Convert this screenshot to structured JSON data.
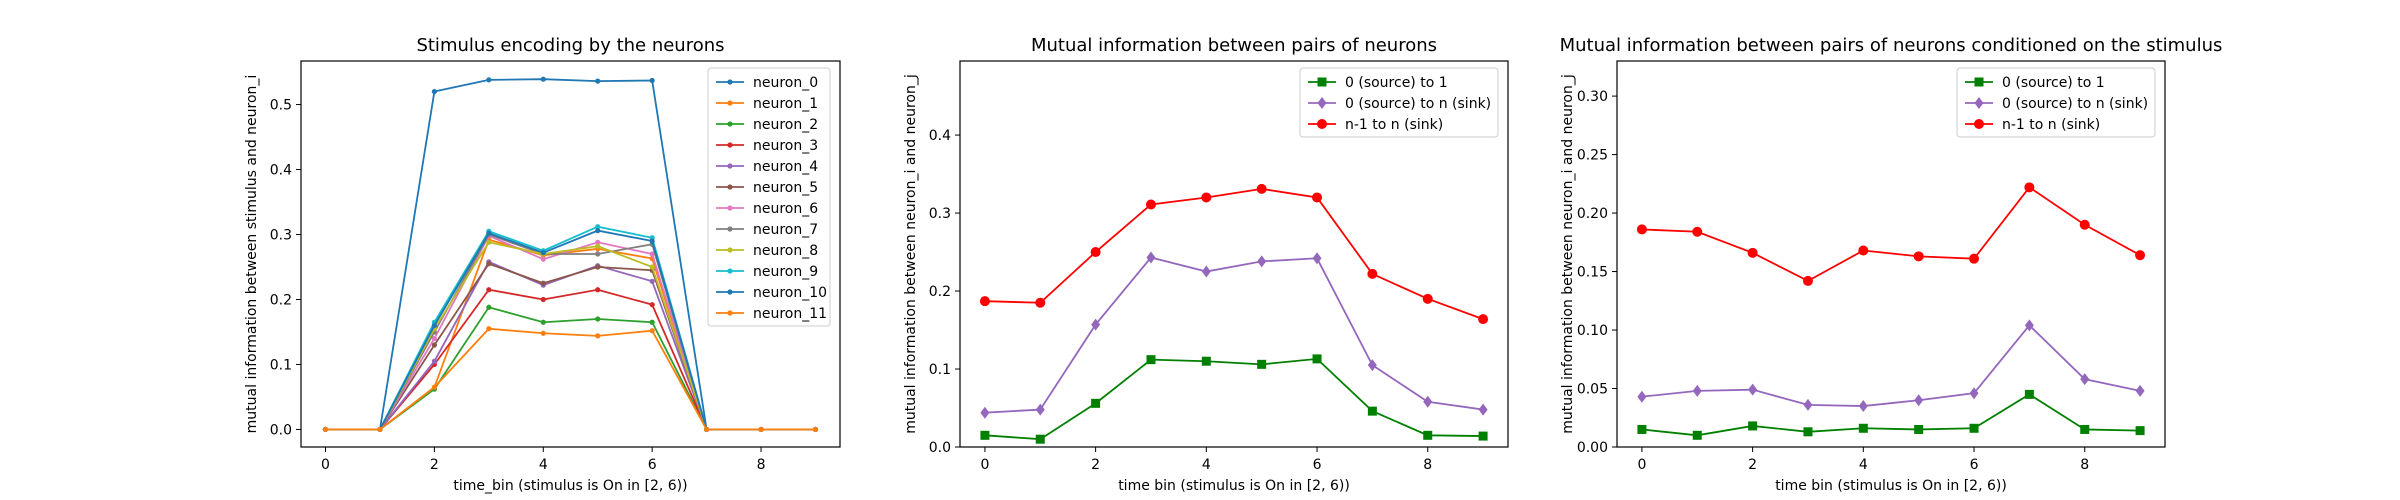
{
  "chart_data": [
    {
      "type": "line",
      "title": "Stimulus encoding by the neurons",
      "xlabel": "time_bin (stimulus is On in [2, 6))",
      "ylabel": "mutual information between stimulus and neuron_i",
      "xlim": [
        -0.45,
        9.45
      ],
      "ylim": [
        -0.027,
        0.567
      ],
      "xticks": [
        0,
        2,
        4,
        6,
        8
      ],
      "yticks": [
        0.0,
        0.1,
        0.2,
        0.3,
        0.4,
        0.5
      ],
      "ytick_labels": [
        "0.0",
        "0.1",
        "0.2",
        "0.3",
        "0.4",
        "0.5"
      ],
      "legend_loc": "upper right",
      "x": [
        0,
        1,
        2,
        3,
        4,
        5,
        6,
        7,
        8,
        9
      ],
      "series": [
        {
          "name": "neuron_0",
          "color": "#1f77b4",
          "marker": "dot",
          "values": [
            0,
            0,
            0.52,
            0.538,
            0.539,
            0.536,
            0.537,
            0,
            0,
            0
          ]
        },
        {
          "name": "neuron_1",
          "color": "#ff7f0e",
          "marker": "dot",
          "values": [
            0,
            0,
            0.065,
            0.292,
            0.268,
            0.278,
            0.263,
            0,
            0,
            0
          ]
        },
        {
          "name": "neuron_2",
          "color": "#2ca02c",
          "marker": "dot",
          "values": [
            0,
            0,
            0.062,
            0.188,
            0.165,
            0.17,
            0.165,
            0,
            0,
            0
          ]
        },
        {
          "name": "neuron_3",
          "color": "#d62728",
          "marker": "dot",
          "values": [
            0,
            0,
            0.1,
            0.215,
            0.2,
            0.215,
            0.192,
            0,
            0,
            0
          ]
        },
        {
          "name": "neuron_4",
          "color": "#9467bd",
          "marker": "dot",
          "values": [
            0,
            0,
            0.105,
            0.258,
            0.222,
            0.252,
            0.228,
            0,
            0,
            0
          ]
        },
        {
          "name": "neuron_5",
          "color": "#8c564b",
          "marker": "dot",
          "values": [
            0,
            0,
            0.13,
            0.255,
            0.225,
            0.25,
            0.245,
            0,
            0,
            0
          ]
        },
        {
          "name": "neuron_6",
          "color": "#e377c2",
          "marker": "dot",
          "values": [
            0,
            0,
            0.14,
            0.298,
            0.262,
            0.288,
            0.27,
            0,
            0,
            0
          ]
        },
        {
          "name": "neuron_7",
          "color": "#7f7f7f",
          "marker": "dot",
          "values": [
            0,
            0,
            0.15,
            0.3,
            0.27,
            0.27,
            0.285,
            0,
            0,
            0
          ]
        },
        {
          "name": "neuron_8",
          "color": "#bcbd22",
          "marker": "dot",
          "values": [
            0,
            0,
            0.155,
            0.288,
            0.27,
            0.282,
            0.25,
            0,
            0,
            0
          ]
        },
        {
          "name": "neuron_9",
          "color": "#17becf",
          "marker": "dot",
          "values": [
            0,
            0,
            0.165,
            0.305,
            0.275,
            0.312,
            0.295,
            0,
            0,
            0
          ]
        },
        {
          "name": "neuron_10",
          "color": "#1f77b4",
          "marker": "dot",
          "values": [
            0,
            0,
            0.16,
            0.302,
            0.272,
            0.306,
            0.29,
            0,
            0,
            0
          ]
        },
        {
          "name": "neuron_11",
          "color": "#ff7f0e",
          "marker": "dot",
          "values": [
            0,
            0,
            0.065,
            0.155,
            0.148,
            0.144,
            0.152,
            0,
            0,
            0
          ]
        }
      ]
    },
    {
      "type": "line",
      "title": "Mutual information between pairs of neurons",
      "xlabel": "time bin (stimulus is On in [2, 6))",
      "ylabel": "mutual information between neuron_i and neuron_j",
      "xlim": [
        -0.45,
        9.45
      ],
      "ylim": [
        0,
        0.495
      ],
      "xticks": [
        0,
        2,
        4,
        6,
        8
      ],
      "yticks": [
        0.0,
        0.1,
        0.2,
        0.3,
        0.4
      ],
      "ytick_labels": [
        "0.0",
        "0.1",
        "0.2",
        "0.3",
        "0.4"
      ],
      "legend_loc": "upper right",
      "x": [
        0,
        1,
        2,
        3,
        4,
        5,
        6,
        7,
        8,
        9
      ],
      "series": [
        {
          "name": "0 (source) to 1",
          "color": "#008000",
          "marker": "square",
          "values": [
            0.015,
            0.01,
            0.056,
            0.112,
            0.11,
            0.106,
            0.113,
            0.046,
            0.015,
            0.014
          ]
        },
        {
          "name": "0 (source) to n (sink)",
          "color": "#9467bd",
          "marker": "diamond",
          "values": [
            0.044,
            0.048,
            0.157,
            0.243,
            0.225,
            0.238,
            0.242,
            0.105,
            0.058,
            0.048
          ]
        },
        {
          "name": "n-1 to n (sink)",
          "color": "#ff0000",
          "marker": "circle",
          "values": [
            0.187,
            0.185,
            0.25,
            0.311,
            0.32,
            0.331,
            0.32,
            0.222,
            0.19,
            0.164
          ]
        }
      ]
    },
    {
      "type": "line",
      "title": "Mutual information between pairs of neurons conditioned on the stimulus",
      "xlabel": "time bin (stimulus is On in [2, 6))",
      "ylabel": "mutual information between neuron_i and neuron_j",
      "xlim": [
        -0.45,
        9.45
      ],
      "ylim": [
        0,
        0.33
      ],
      "xticks": [
        0,
        2,
        4,
        6,
        8
      ],
      "yticks": [
        0.0,
        0.05,
        0.1,
        0.15,
        0.2,
        0.25,
        0.3
      ],
      "ytick_labels": [
        "0.00",
        "0.05",
        "0.10",
        "0.15",
        "0.20",
        "0.25",
        "0.30"
      ],
      "legend_loc": "upper right",
      "x": [
        0,
        1,
        2,
        3,
        4,
        5,
        6,
        7,
        8,
        9
      ],
      "series": [
        {
          "name": "0 (source) to 1",
          "color": "#008000",
          "marker": "square",
          "values": [
            0.015,
            0.01,
            0.018,
            0.013,
            0.016,
            0.015,
            0.016,
            0.045,
            0.015,
            0.014
          ]
        },
        {
          "name": "0 (source) to n (sink)",
          "color": "#9467bd",
          "marker": "diamond",
          "values": [
            0.043,
            0.048,
            0.049,
            0.036,
            0.035,
            0.04,
            0.046,
            0.104,
            0.058,
            0.048
          ]
        },
        {
          "name": "n-1 to n (sink)",
          "color": "#ff0000",
          "marker": "circle",
          "values": [
            0.186,
            0.184,
            0.166,
            0.142,
            0.168,
            0.163,
            0.161,
            0.222,
            0.19,
            0.164
          ]
        }
      ]
    }
  ]
}
